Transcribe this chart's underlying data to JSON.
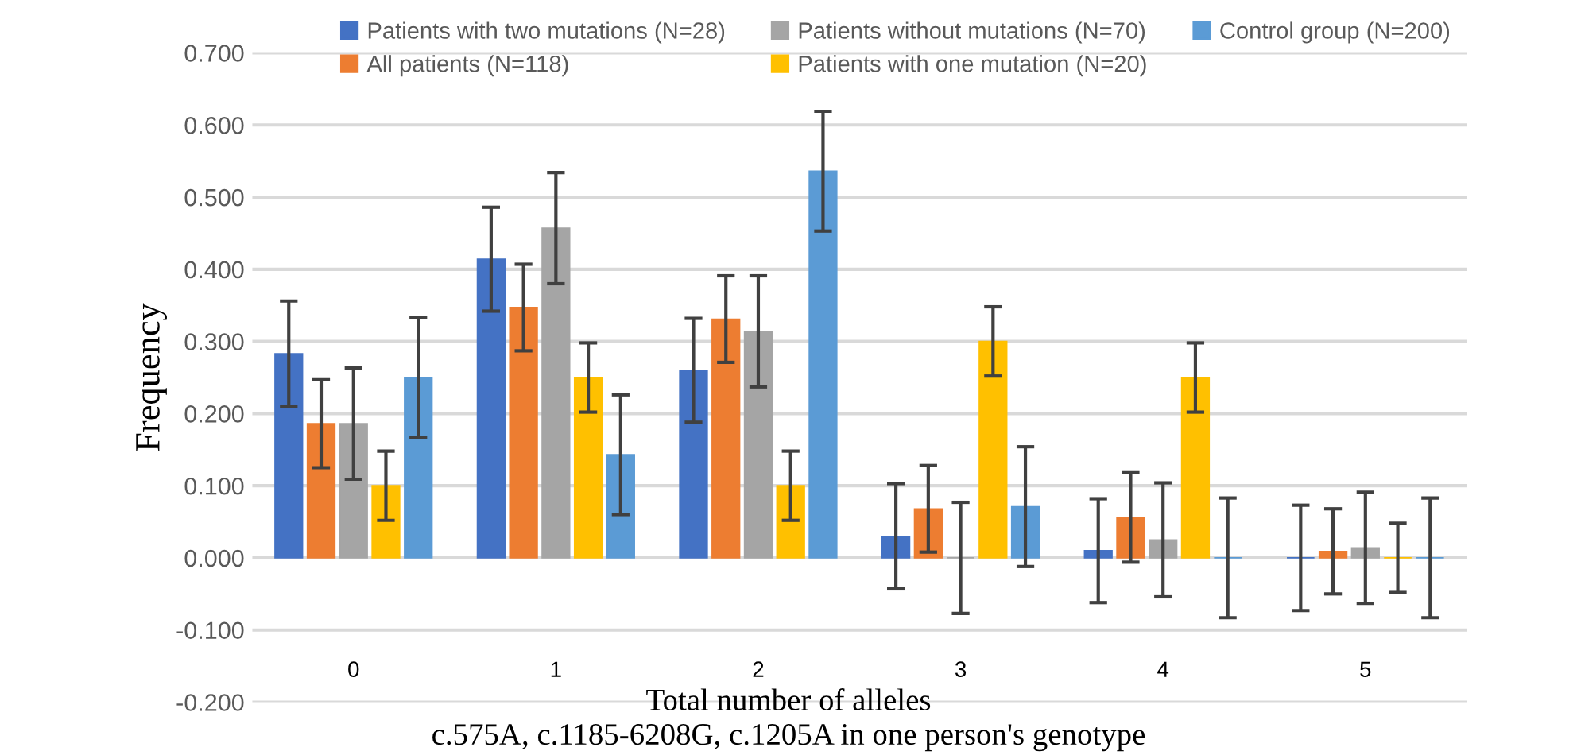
{
  "chart_data": {
    "type": "bar",
    "xlabel": "Total number of alleles\nc.575A, c.1185-6208G, c.1205A in one person's genotype",
    "ylabel": "Frequency",
    "categories": [
      "0",
      "1",
      "2",
      "3",
      "4",
      "5"
    ],
    "series": [
      {
        "name": "Patients with two mutations (N=28)",
        "color": "#4472c4",
        "values": [
          0.283,
          0.414,
          0.26,
          0.03,
          0.01,
          0
        ],
        "errors": [
          0.073,
          0.072,
          0.072,
          0.073,
          0.072,
          0.073
        ]
      },
      {
        "name": "All patients (N=118)",
        "color": "#ed7d31",
        "values": [
          0.186,
          0.347,
          0.331,
          0.068,
          0.056,
          0.009
        ],
        "errors": [
          0.061,
          0.06,
          0.06,
          0.06,
          0.062,
          0.059
        ]
      },
      {
        "name": "Patients without mutations (N=70)",
        "color": "#a5a5a5",
        "values": [
          0.186,
          0.457,
          0.314,
          0,
          0.025,
          0.014
        ],
        "errors": [
          0.077,
          0.077,
          0.077,
          0.077,
          0.079,
          0.077
        ]
      },
      {
        "name": "Patients with one mutation (N=20)",
        "color": "#ffc000",
        "values": [
          0.1,
          0.25,
          0.1,
          0.3,
          0.25,
          0
        ],
        "errors": [
          0.048,
          0.048,
          0.048,
          0.048,
          0.048,
          0.048
        ]
      },
      {
        "name": "Control group (N=200)",
        "color": "#5b9bd5",
        "values": [
          0.25,
          0.143,
          0.536,
          0.071,
          0,
          0
        ],
        "errors": [
          0.083,
          0.083,
          0.083,
          0.083,
          0.083,
          0.083
        ]
      }
    ],
    "ylim": [
      -0.2,
      0.7
    ],
    "yticks": [
      {
        "value": -0.2,
        "label": "-0.200"
      },
      {
        "value": -0.1,
        "label": "-0.100"
      },
      {
        "value": 0,
        "label": "0.000"
      },
      {
        "value": 0.1,
        "label": "0.100"
      },
      {
        "value": 0.2,
        "label": "0.200"
      },
      {
        "value": 0.3,
        "label": "0.300"
      },
      {
        "value": 0.4,
        "label": "0.400"
      },
      {
        "value": 0.5,
        "label": "0.500"
      },
      {
        "value": 0.6,
        "label": "0.600"
      },
      {
        "value": 0.7,
        "label": "0.700"
      }
    ],
    "grid": "y",
    "legend": "top"
  }
}
